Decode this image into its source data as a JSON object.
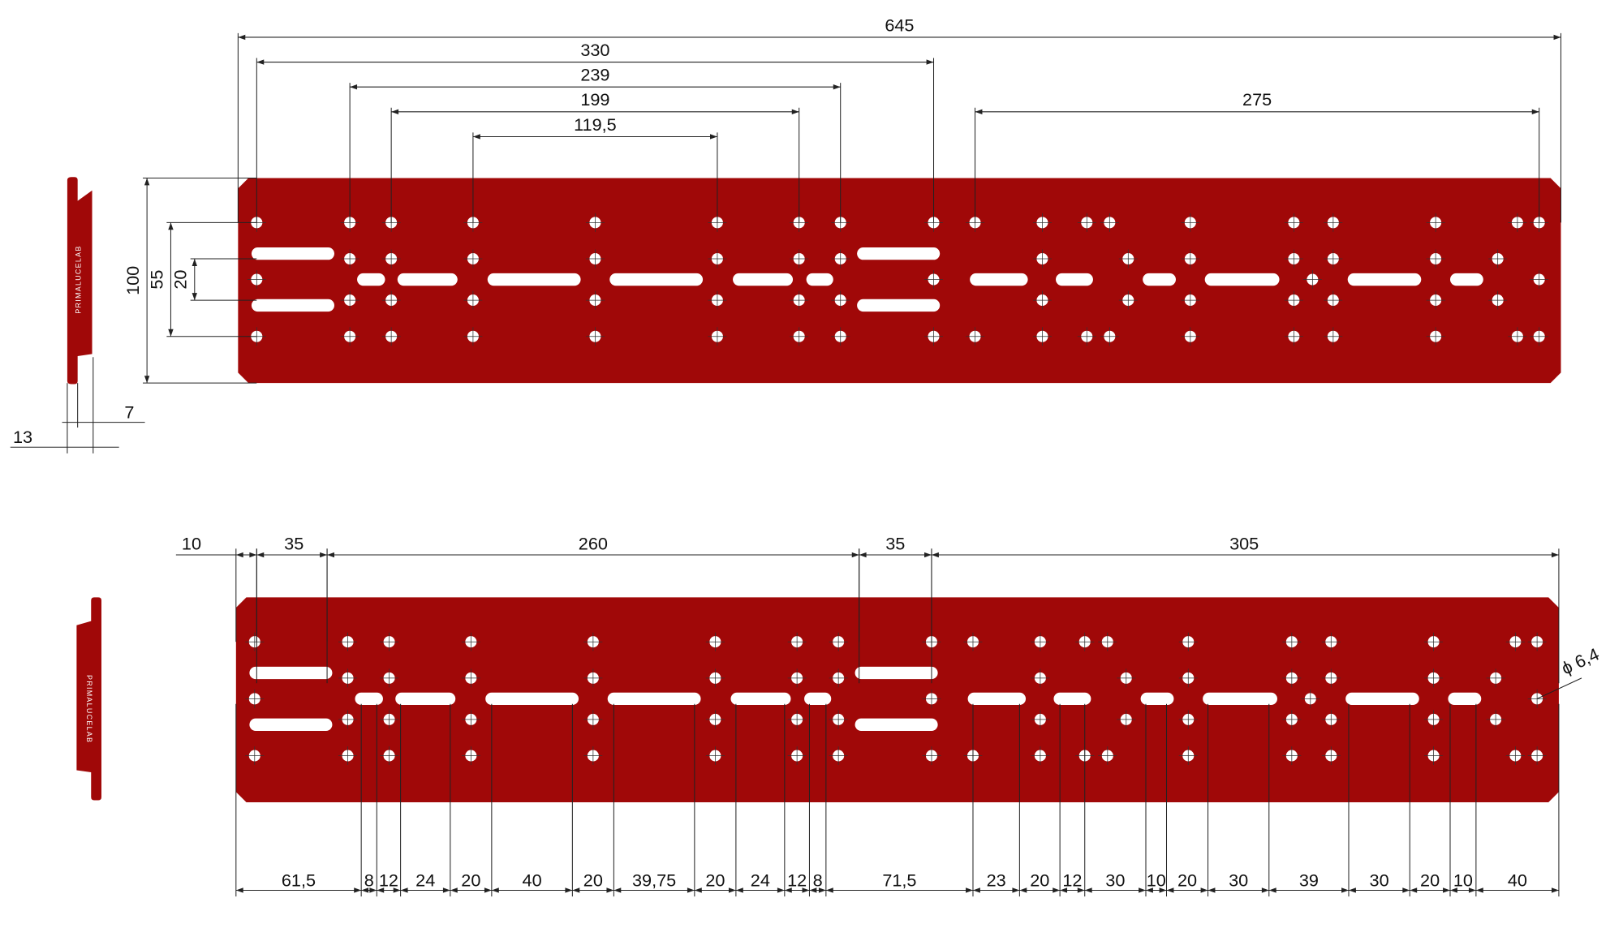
{
  "top_view": {
    "dimensions": [
      "645",
      "330",
      "239",
      "199",
      "119,5",
      "275",
      "100",
      "55",
      "20"
    ],
    "side_dimensions": [
      "13",
      "7"
    ],
    "brand": "PRIMALUCELAB"
  },
  "bottom_view": {
    "top_dimensions": [
      "10",
      "35",
      "260",
      "35",
      "305"
    ],
    "bottom_dimensions": [
      "61,5",
      "8",
      "12",
      "24",
      "20",
      "40",
      "20",
      "39,75",
      "20",
      "24",
      "12",
      "8",
      "71,5",
      "23",
      "20",
      "12",
      "30",
      "10",
      "20",
      "30",
      "39",
      "30",
      "20",
      "10",
      "40"
    ],
    "hole_diameter": "ϕ 6,4",
    "brand": "PRIMALUCELAB"
  }
}
